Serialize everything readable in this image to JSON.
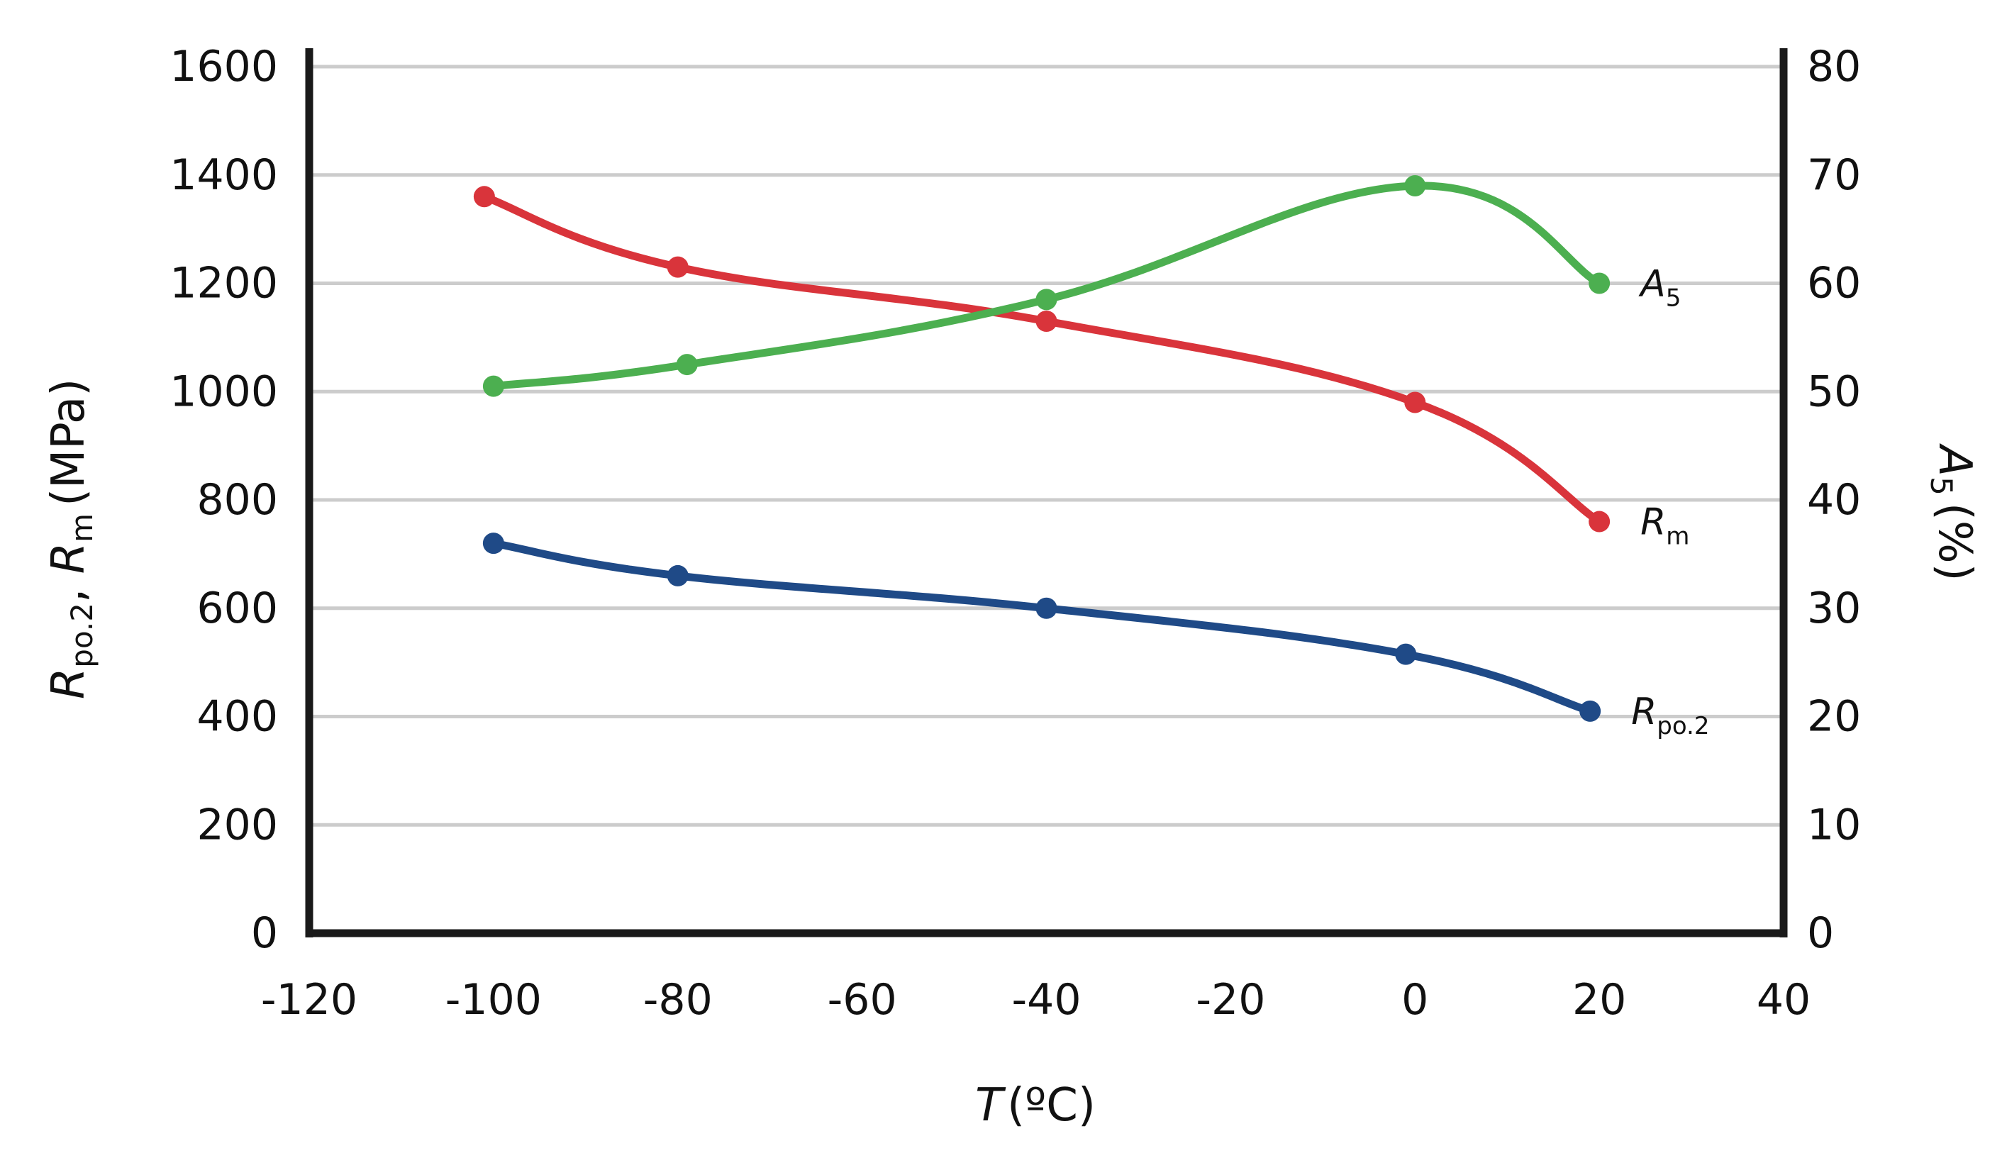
{
  "chart_data": {
    "type": "line",
    "x": [
      -100,
      -80,
      -40,
      0,
      20
    ],
    "x_ticks": [
      "-120",
      "-100",
      "-80",
      "-60",
      "-40",
      "-20",
      "0",
      "20",
      "40"
    ],
    "xlim": [
      -120,
      40
    ],
    "xlabel": {
      "main": "T",
      "unit": "(ºC)"
    },
    "y_left": {
      "ticks": [
        "0",
        "200",
        "400",
        "600",
        "800",
        "1000",
        "1200",
        "1400",
        "1600"
      ],
      "ylim": [
        0,
        1600
      ],
      "label": {
        "sym1": "R",
        "sub1": "po.2",
        "sep": ", ",
        "sym2": "R",
        "sub2": "m",
        "unit": "(MPa)"
      }
    },
    "y_right": {
      "ticks": [
        "0",
        "10",
        "20",
        "30",
        "40",
        "50",
        "60",
        "70",
        "80"
      ],
      "ylim": [
        0,
        80
      ],
      "label": {
        "sym": "A",
        "sub": "5",
        "unit": "(%)"
      }
    },
    "grid": true,
    "series": [
      {
        "name": "R",
        "name_sub": "m",
        "axis": "left",
        "color": "#d9343b",
        "x": [
          -101,
          -80,
          -40,
          0,
          20
        ],
        "values": [
          1360,
          1230,
          1130,
          980,
          760
        ]
      },
      {
        "name": "A",
        "name_sub": "5",
        "axis": "right",
        "color": "#4caf50",
        "x": [
          -100,
          -79,
          -40,
          0,
          20
        ],
        "values": [
          50.5,
          52.5,
          58.5,
          69,
          60
        ]
      },
      {
        "name": "R",
        "name_sub": "po.2",
        "axis": "left",
        "color": "#1f4a87",
        "x": [
          -100,
          -80,
          -40,
          -1,
          19
        ],
        "values": [
          720,
          660,
          600,
          515,
          410
        ]
      }
    ]
  }
}
